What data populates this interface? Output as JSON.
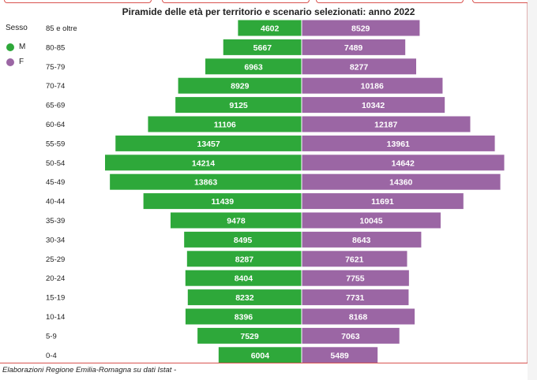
{
  "title": "Piramide delle età per territorio e scenario selezionati: anno 2022",
  "legend": {
    "title": "Sesso",
    "items": [
      {
        "label": "M",
        "color": "#2ea83a"
      },
      {
        "label": "F",
        "color": "#9b66a4"
      }
    ]
  },
  "footer": "Elaborazioni Regione Emilia-Romagna su dati Istat -",
  "colors": {
    "male": "#2ea83a",
    "female": "#9b66a4",
    "frame": "#d9534f"
  },
  "chart_data": {
    "type": "bar",
    "orientation": "horizontal-pyramid",
    "title": "Piramide delle età per territorio e scenario selezionati: anno 2022",
    "categories": [
      "85 e oltre",
      "80-85",
      "75-79",
      "70-74",
      "65-69",
      "60-64",
      "55-59",
      "50-54",
      "45-49",
      "40-44",
      "35-39",
      "30-34",
      "25-29",
      "20-24",
      "15-19",
      "10-14",
      "5-9",
      "0-4"
    ],
    "series": [
      {
        "name": "M",
        "values": [
          4602,
          5667,
          6963,
          8929,
          9125,
          11106,
          13457,
          14214,
          13863,
          11439,
          9478,
          8495,
          8287,
          8404,
          8232,
          8396,
          7529,
          6004
        ]
      },
      {
        "name": "F",
        "values": [
          8529,
          7489,
          8277,
          10186,
          10342,
          12187,
          13961,
          14642,
          14360,
          11691,
          10045,
          8643,
          7621,
          7755,
          7731,
          8168,
          7063,
          5489
        ]
      }
    ],
    "legend_position": "left",
    "grid": false
  }
}
